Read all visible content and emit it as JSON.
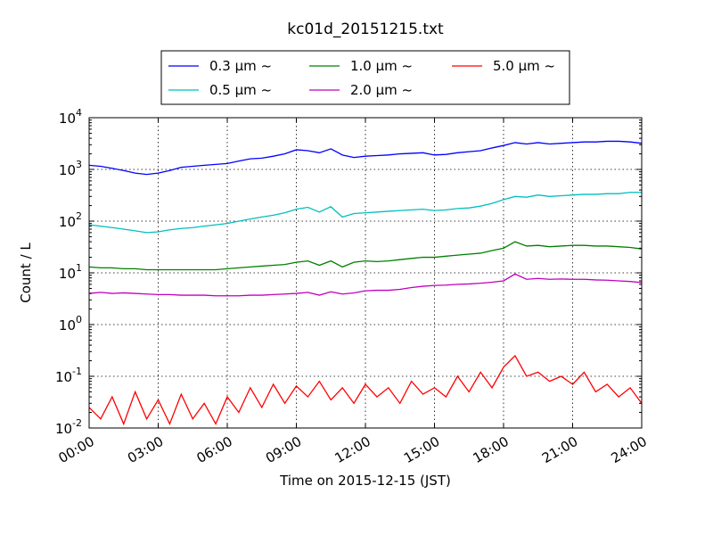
{
  "chart_data": {
    "type": "line",
    "title": "kc01d_20151215.txt",
    "xlabel": "Time on 2015-12-15 (JST)",
    "ylabel": "Count / L",
    "x_unit": "hours",
    "xlim": [
      0,
      24
    ],
    "ylim": [
      0.01,
      10000
    ],
    "y_scale": "log",
    "grid": true,
    "legend_position": "top-center",
    "x_ticks": [
      {
        "value": 0,
        "label": "00:00"
      },
      {
        "value": 3,
        "label": "03:00"
      },
      {
        "value": 6,
        "label": "06:00"
      },
      {
        "value": 9,
        "label": "09:00"
      },
      {
        "value": 12,
        "label": "12:00"
      },
      {
        "value": 15,
        "label": "15:00"
      },
      {
        "value": 18,
        "label": "18:00"
      },
      {
        "value": 21,
        "label": "21:00"
      },
      {
        "value": 24,
        "label": "24:00"
      }
    ],
    "y_ticks": [
      {
        "value": 0.01,
        "base": "10",
        "exp": "-2"
      },
      {
        "value": 0.1,
        "base": "10",
        "exp": "-1"
      },
      {
        "value": 1,
        "base": "10",
        "exp": "0"
      },
      {
        "value": 10,
        "base": "10",
        "exp": "1"
      },
      {
        "value": 100,
        "base": "10",
        "exp": "2"
      },
      {
        "value": 1000,
        "base": "10",
        "exp": "3"
      },
      {
        "value": 10000,
        "base": "10",
        "exp": "4"
      }
    ],
    "series": [
      {
        "name": "0.3 µm ~",
        "color": "#0000ff",
        "x": [
          0,
          0.5,
          1,
          1.5,
          2,
          2.5,
          3,
          3.5,
          4,
          4.5,
          5,
          5.5,
          6,
          6.5,
          7,
          7.5,
          8,
          8.5,
          9,
          9.5,
          10,
          10.5,
          11,
          11.5,
          12,
          12.5,
          13,
          13.5,
          14,
          14.5,
          15,
          15.5,
          16,
          16.5,
          17,
          17.5,
          18,
          18.5,
          19,
          19.5,
          20,
          20.5,
          21,
          21.5,
          22,
          22.5,
          23,
          23.5,
          24
        ],
        "values": [
          1200,
          1150,
          1050,
          950,
          850,
          800,
          850,
          950,
          1100,
          1150,
          1200,
          1250,
          1300,
          1450,
          1600,
          1650,
          1800,
          2000,
          2400,
          2300,
          2100,
          2500,
          1900,
          1700,
          1800,
          1850,
          1900,
          2000,
          2050,
          2100,
          1900,
          1950,
          2100,
          2200,
          2300,
          2600,
          2900,
          3300,
          3100,
          3300,
          3100,
          3200,
          3300,
          3400,
          3400,
          3500,
          3500,
          3400,
          3200
        ]
      },
      {
        "name": "0.5 µm ~",
        "color": "#00bfbf",
        "x": [
          0,
          0.5,
          1,
          1.5,
          2,
          2.5,
          3,
          3.5,
          4,
          4.5,
          5,
          5.5,
          6,
          6.5,
          7,
          7.5,
          8,
          8.5,
          9,
          9.5,
          10,
          10.5,
          11,
          11.5,
          12,
          12.5,
          13,
          13.5,
          14,
          14.5,
          15,
          15.5,
          16,
          16.5,
          17,
          17.5,
          18,
          18.5,
          19,
          19.5,
          20,
          20.5,
          21,
          21.5,
          22,
          22.5,
          23,
          23.5,
          24
        ],
        "values": [
          85,
          80,
          75,
          70,
          65,
          60,
          62,
          68,
          72,
          75,
          80,
          85,
          90,
          100,
          110,
          120,
          130,
          145,
          170,
          185,
          150,
          190,
          120,
          140,
          145,
          150,
          155,
          160,
          165,
          170,
          160,
          165,
          175,
          180,
          195,
          220,
          260,
          300,
          290,
          320,
          300,
          310,
          320,
          330,
          330,
          340,
          340,
          360,
          360
        ]
      },
      {
        "name": "1.0 µm ~",
        "color": "#008000",
        "x": [
          0,
          0.5,
          1,
          1.5,
          2,
          2.5,
          3,
          3.5,
          4,
          4.5,
          5,
          5.5,
          6,
          6.5,
          7,
          7.5,
          8,
          8.5,
          9,
          9.5,
          10,
          10.5,
          11,
          11.5,
          12,
          12.5,
          13,
          13.5,
          14,
          14.5,
          15,
          15.5,
          16,
          16.5,
          17,
          17.5,
          18,
          18.5,
          19,
          19.5,
          20,
          20.5,
          21,
          21.5,
          22,
          22.5,
          23,
          23.5,
          24
        ],
        "values": [
          13,
          12.5,
          12.5,
          12,
          12,
          11.5,
          11.5,
          11.5,
          11.5,
          11.5,
          11.5,
          11.5,
          12,
          12.5,
          13,
          13.5,
          14,
          14.5,
          16,
          17,
          14,
          17,
          13,
          16,
          17,
          16.5,
          17,
          18,
          19,
          20,
          20,
          21,
          22,
          23,
          24,
          27,
          30,
          40,
          33,
          34,
          32,
          33,
          34,
          34,
          33,
          33,
          32,
          31,
          29
        ]
      },
      {
        "name": "2.0 µm ~",
        "color": "#bf00bf",
        "x": [
          0,
          0.5,
          1,
          1.5,
          2,
          2.5,
          3,
          3.5,
          4,
          4.5,
          5,
          5.5,
          6,
          6.5,
          7,
          7.5,
          8,
          8.5,
          9,
          9.5,
          10,
          10.5,
          11,
          11.5,
          12,
          12.5,
          13,
          13.5,
          14,
          14.5,
          15,
          15.5,
          16,
          16.5,
          17,
          17.5,
          18,
          18.5,
          19,
          19.5,
          20,
          20.5,
          21,
          21.5,
          22,
          22.5,
          23,
          23.5,
          24
        ],
        "values": [
          4,
          4.2,
          4,
          4.1,
          4,
          3.9,
          3.8,
          3.8,
          3.7,
          3.7,
          3.7,
          3.6,
          3.6,
          3.6,
          3.7,
          3.7,
          3.8,
          3.9,
          4,
          4.2,
          3.7,
          4.3,
          3.9,
          4.1,
          4.5,
          4.6,
          4.6,
          4.8,
          5.2,
          5.5,
          5.7,
          5.8,
          6,
          6.1,
          6.3,
          6.6,
          7,
          9.5,
          7.5,
          7.8,
          7.5,
          7.6,
          7.5,
          7.5,
          7.3,
          7.2,
          7,
          6.8,
          6.5
        ]
      },
      {
        "name": "5.0 µm ~",
        "color": "#ff0000",
        "x": [
          0,
          0.5,
          1,
          1.5,
          2,
          2.5,
          3,
          3.5,
          4,
          4.5,
          5,
          5.5,
          6,
          6.5,
          7,
          7.5,
          8,
          8.5,
          9,
          9.5,
          10,
          10.5,
          11,
          11.5,
          12,
          12.5,
          13,
          13.5,
          14,
          14.5,
          15,
          15.5,
          16,
          16.5,
          17,
          17.5,
          18,
          18.5,
          19,
          19.5,
          20,
          20.5,
          21,
          21.5,
          22,
          22.5,
          23,
          23.5,
          24
        ],
        "values": [
          0.025,
          0.015,
          0.04,
          0.012,
          0.05,
          0.015,
          0.035,
          0.012,
          0.045,
          0.015,
          0.03,
          0.012,
          0.04,
          0.02,
          0.06,
          0.025,
          0.07,
          0.03,
          0.065,
          0.04,
          0.08,
          0.035,
          0.06,
          0.03,
          0.07,
          0.04,
          0.06,
          0.03,
          0.08,
          0.045,
          0.06,
          0.04,
          0.1,
          0.05,
          0.12,
          0.06,
          0.15,
          0.25,
          0.1,
          0.12,
          0.08,
          0.1,
          0.07,
          0.12,
          0.05,
          0.07,
          0.04,
          0.06,
          0.03
        ]
      }
    ]
  }
}
